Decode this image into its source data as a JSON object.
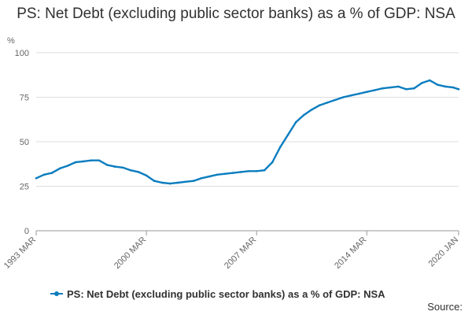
{
  "chart_data": {
    "type": "line",
    "title": "PS: Net Debt (excluding public sector banks) as a % of GDP: NSA",
    "ylabel": "%",
    "xlabel": "",
    "ylim": [
      0,
      100
    ],
    "yticks": [
      0,
      25,
      50,
      75,
      100
    ],
    "xtick_labels": [
      "1993 MAR",
      "2000 MAR",
      "2007 MAR",
      "2014 MAR",
      "2020 JAN"
    ],
    "xlim": [
      "1993-03",
      "2020-01"
    ],
    "grid": true,
    "legend_position": "bottom",
    "series": [
      {
        "name": "PS: Net Debt (excluding public sector banks) as a % of GDP: NSA",
        "color": "#0b7dbf",
        "x": [
          "1993-03",
          "1993-09",
          "1994-03",
          "1994-09",
          "1995-03",
          "1995-09",
          "1996-03",
          "1996-09",
          "1997-03",
          "1997-09",
          "1998-03",
          "1998-09",
          "1999-03",
          "1999-09",
          "2000-03",
          "2000-09",
          "2001-03",
          "2001-09",
          "2002-03",
          "2002-09",
          "2003-03",
          "2003-09",
          "2004-03",
          "2004-09",
          "2005-03",
          "2005-09",
          "2006-03",
          "2006-09",
          "2007-03",
          "2007-09",
          "2008-03",
          "2008-09",
          "2009-03",
          "2009-09",
          "2010-03",
          "2010-09",
          "2011-03",
          "2011-09",
          "2012-03",
          "2012-09",
          "2013-03",
          "2013-09",
          "2014-03",
          "2014-09",
          "2015-03",
          "2015-09",
          "2016-03",
          "2016-09",
          "2017-03",
          "2017-09",
          "2018-03",
          "2018-09",
          "2019-03",
          "2019-09",
          "2020-01"
        ],
        "values": [
          29.5,
          31.5,
          32.5,
          35,
          36.5,
          38.5,
          39,
          39.5,
          39.5,
          37,
          36,
          35.5,
          34,
          33,
          31,
          28,
          27,
          26.5,
          27,
          27.5,
          28,
          29.5,
          30.5,
          31.5,
          32,
          32.5,
          33,
          33.5,
          33.5,
          34,
          38.5,
          47,
          54,
          61,
          65,
          68,
          70.5,
          72,
          73.5,
          75,
          76,
          77,
          78,
          79,
          80,
          80.5,
          81,
          79.5,
          80,
          83,
          84.5,
          82,
          81,
          80.5,
          79.5
        ]
      }
    ]
  },
  "footer": {
    "source_label": "Source:"
  }
}
